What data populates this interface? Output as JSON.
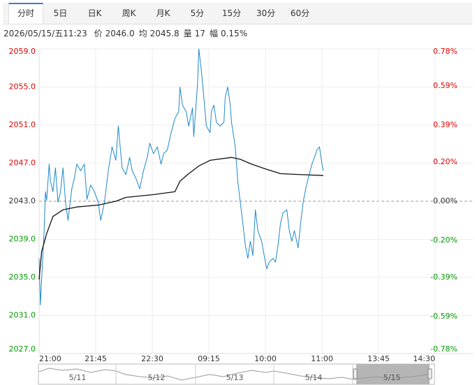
{
  "tabs": [
    "分时",
    "5日",
    "日K",
    "周K",
    "月K",
    "5分",
    "15分",
    "30分",
    "60分"
  ],
  "info": {
    "time": "2026/05/15/五11:23",
    "items": [
      {
        "label": "价",
        "value": "2046.0"
      },
      {
        "label": "均",
        "value": "2045.8"
      },
      {
        "label": "量",
        "value": "17"
      },
      {
        "label": "幅",
        "value": "0.15%"
      }
    ]
  },
  "navigator": {
    "labels": [
      "5/11",
      "5/12",
      "5/13",
      "5/14",
      "5/15"
    ]
  },
  "chart_data": {
    "type": "line",
    "xlim": [
      0,
      345
    ],
    "xticks": [
      {
        "value": 0,
        "label": "21:00"
      },
      {
        "value": 45,
        "label": "21:45"
      },
      {
        "value": 90,
        "label": "22:30"
      },
      {
        "value": 135,
        "label": "09:15"
      },
      {
        "value": 180,
        "label": "10:00"
      },
      {
        "value": 225,
        "label": "11:00"
      },
      {
        "value": 270,
        "label": "13:45"
      },
      {
        "value": 315,
        "label": "14:30"
      }
    ],
    "ylim": [
      2027,
      2059
    ],
    "yticks": [
      {
        "value": 2059,
        "label": "2059.0"
      },
      {
        "value": 2055,
        "label": "2055.0"
      },
      {
        "value": 2051,
        "label": "2051.0"
      },
      {
        "value": 2047,
        "label": "2047.0"
      },
      {
        "value": 2043,
        "label": "2043.0"
      },
      {
        "value": 2039,
        "label": "2039.0"
      },
      {
        "value": 2035,
        "label": "2035.0"
      },
      {
        "value": 2031,
        "label": "2031.0"
      },
      {
        "value": 2027,
        "label": "2027.0"
      }
    ],
    "y2lim": [
      -0.78,
      0.78
    ],
    "y2ticks": [
      {
        "value": 0.78,
        "label": "0.78%"
      },
      {
        "value": 0.59,
        "label": "0.59%"
      },
      {
        "value": 0.39,
        "label": "0.39%"
      },
      {
        "value": 0.2,
        "label": "0.20%"
      },
      {
        "value": 0,
        "label": "0.00%"
      },
      {
        "value": -0.2,
        "label": "-0.20%"
      },
      {
        "value": -0.39,
        "label": "-0.39%"
      },
      {
        "value": -0.59,
        "label": "-0.59%"
      },
      {
        "value": -0.78,
        "label": "-0.78%"
      }
    ],
    "grid": true,
    "up_color": "#e00000",
    "down_color": "#009900",
    "neutral_color": "#333333",
    "series": [
      {
        "color": "#1e88c8",
        "x": [
          0,
          1,
          2,
          4,
          5,
          6,
          8,
          9,
          11,
          13,
          15,
          17,
          19,
          21,
          23,
          24,
          26,
          28,
          30,
          33,
          36,
          38,
          41,
          44,
          47,
          49,
          52,
          55,
          58,
          61,
          63,
          66,
          69,
          72,
          74,
          77,
          80,
          83,
          86,
          88,
          91,
          94,
          97,
          99,
          102,
          105,
          108,
          111,
          112,
          114,
          117,
          119,
          122,
          123,
          126,
          127,
          129,
          131,
          133,
          136,
          137,
          139,
          141,
          144,
          147,
          148,
          150,
          152,
          153,
          156,
          158,
          160,
          162,
          164,
          166,
          168,
          170,
          172,
          174,
          177,
          179,
          181,
          183,
          186,
          188,
          190,
          192,
          194,
          197,
          199,
          201,
          203,
          206,
          208,
          210,
          212,
          214,
          217,
          219,
          221,
          223,
          225,
          226
        ],
        "values": [
          2037.0,
          2032.1,
          2034.8,
          2039.9,
          2044.0,
          2043.1,
          2046.9,
          2045.1,
          2044.0,
          2046.5,
          2042.9,
          2044.0,
          2046.5,
          2042.9,
          2041.0,
          2042.1,
          2044.3,
          2045.4,
          2046.9,
          2046.2,
          2046.9,
          2043.2,
          2044.7,
          2044.0,
          2042.9,
          2041.0,
          2042.9,
          2046.2,
          2048.7,
          2047.3,
          2050.9,
          2046.5,
          2045.8,
          2047.6,
          2046.2,
          2045.4,
          2044.3,
          2046.2,
          2047.6,
          2049.1,
          2048.0,
          2048.7,
          2046.9,
          2048.0,
          2048.4,
          2050.2,
          2051.7,
          2052.4,
          2055.0,
          2053.1,
          2052.4,
          2050.9,
          2052.8,
          2049.8,
          2055.3,
          2059.0,
          2056.8,
          2053.9,
          2050.9,
          2050.2,
          2052.4,
          2053.1,
          2051.3,
          2050.9,
          2051.3,
          2053.9,
          2055.0,
          2053.1,
          2051.3,
          2048.7,
          2045.1,
          2042.9,
          2040.7,
          2038.4,
          2037.0,
          2038.8,
          2037.3,
          2042.1,
          2039.9,
          2038.8,
          2037.3,
          2035.9,
          2036.6,
          2037.0,
          2036.6,
          2038.4,
          2040.7,
          2041.8,
          2042.1,
          2039.9,
          2038.8,
          2039.9,
          2038.1,
          2040.7,
          2042.9,
          2044.3,
          2045.4,
          2046.9,
          2047.6,
          2048.4,
          2048.7,
          2046.9,
          2046.2
        ]
      },
      {
        "color": "#111111",
        "x": [
          0,
          2,
          6,
          11,
          19,
          30,
          47,
          61,
          69,
          91,
          108,
          112,
          119,
          127,
          136,
          153,
          160,
          169,
          180,
          192,
          208,
          226
        ],
        "values": [
          2034.8,
          2037.7,
          2039.6,
          2041.4,
          2042.1,
          2042.4,
          2042.6,
          2043.0,
          2043.4,
          2043.7,
          2044.0,
          2045.1,
          2045.9,
          2046.7,
          2047.3,
          2047.6,
          2047.4,
          2046.9,
          2046.4,
          2045.9,
          2045.8,
          2045.7
        ]
      }
    ]
  }
}
